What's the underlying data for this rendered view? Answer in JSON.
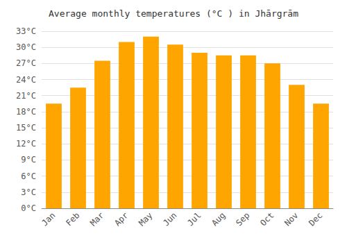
{
  "chart_data": {
    "type": "bar",
    "title": "Average monthly temperatures (°C ) in Jhārgrām",
    "categories": [
      "Jan",
      "Feb",
      "Mar",
      "Apr",
      "May",
      "Jun",
      "Jul",
      "Aug",
      "Sep",
      "Oct",
      "Nov",
      "Dec"
    ],
    "values": [
      19.5,
      22.5,
      27.5,
      31.0,
      32.0,
      30.5,
      29.0,
      28.5,
      28.5,
      27.0,
      23.0,
      19.5
    ],
    "color": "#FFA500",
    "ylim": [
      0,
      33
    ],
    "yticks": [
      {
        "value": 0,
        "label": "0°C"
      },
      {
        "value": 3,
        "label": "3°C"
      },
      {
        "value": 6,
        "label": "6°C"
      },
      {
        "value": 9,
        "label": "9°C"
      },
      {
        "value": 12,
        "label": "12°C"
      },
      {
        "value": 15,
        "label": "15°C"
      },
      {
        "value": 18,
        "label": "18°C"
      },
      {
        "value": 21,
        "label": "21°C"
      },
      {
        "value": 24,
        "label": "24°C"
      },
      {
        "value": 27,
        "label": "27°C"
      },
      {
        "value": 30,
        "label": "30°C"
      },
      {
        "value": 33,
        "label": "33°C"
      }
    ],
    "grid": true
  }
}
